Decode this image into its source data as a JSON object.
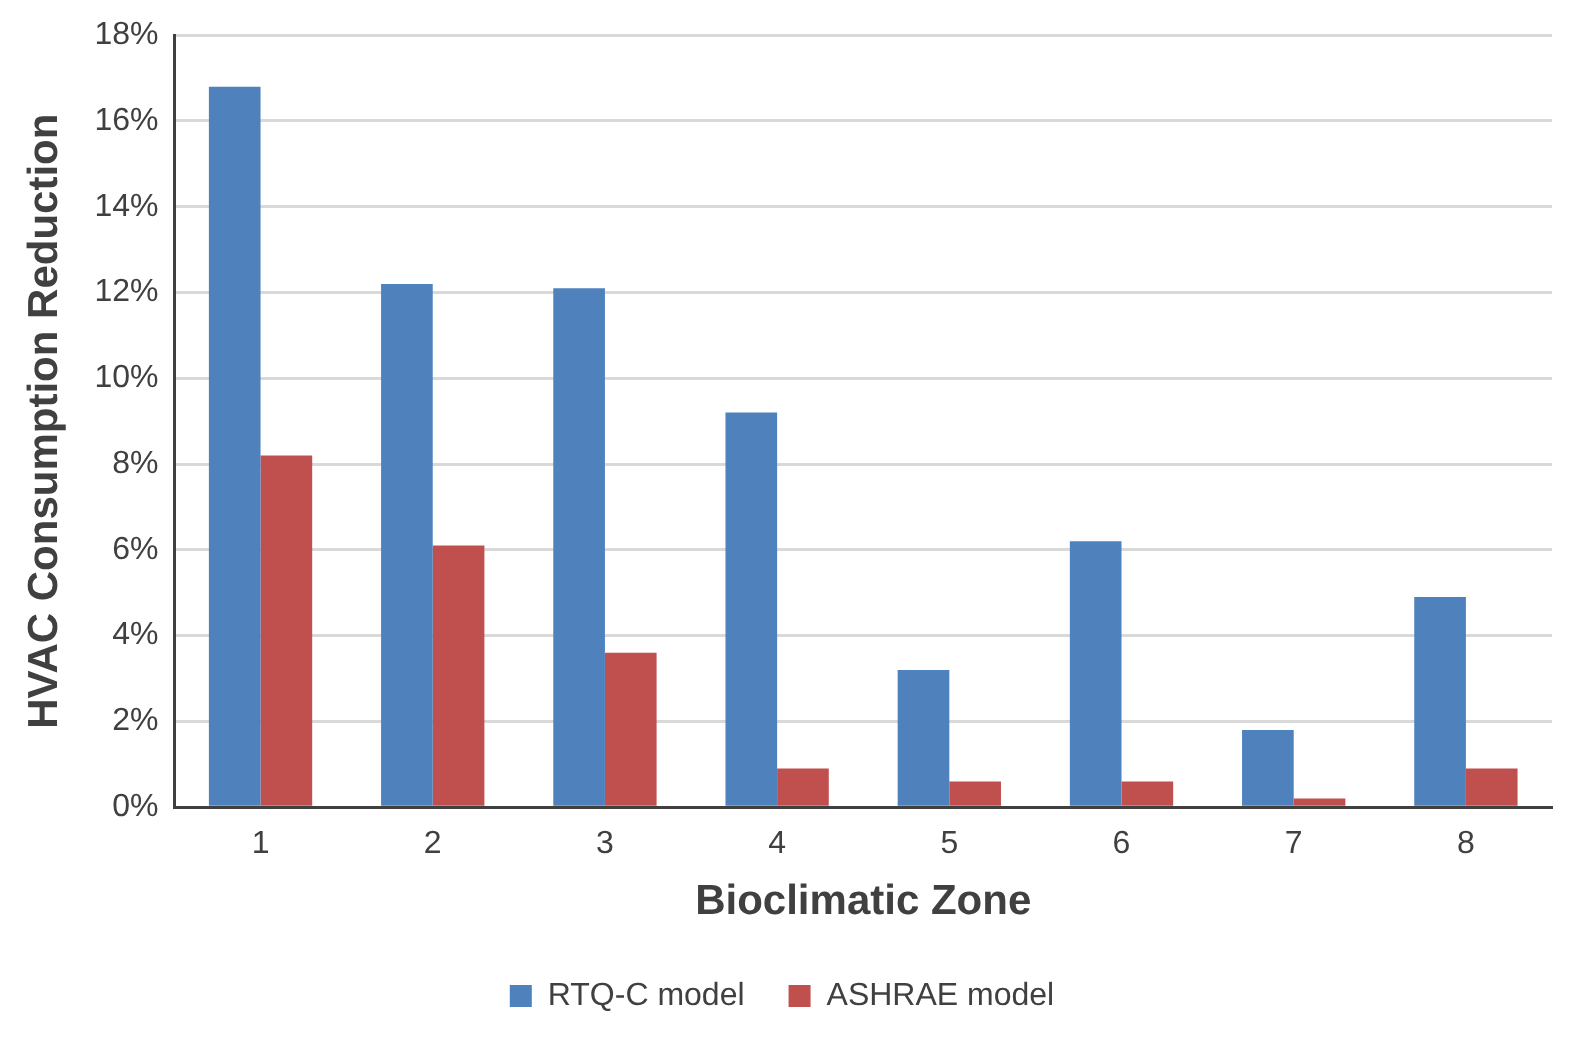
{
  "chart_data": {
    "type": "bar",
    "xlabel": "Bioclimatic Zone",
    "ylabel": "HVAC Consumption Reduction",
    "categories": [
      "1",
      "2",
      "3",
      "4",
      "5",
      "6",
      "7",
      "8"
    ],
    "series": [
      {
        "name": "RTQ-C model",
        "color": "#4f81bd",
        "values": [
          16.8,
          12.2,
          12.1,
          9.2,
          3.2,
          6.2,
          1.8,
          4.9
        ]
      },
      {
        "name": "ASHRAE model",
        "color": "#c0504d",
        "values": [
          8.2,
          6.1,
          3.6,
          0.9,
          0.6,
          0.6,
          0.2,
          0.9
        ]
      }
    ],
    "ylim": [
      0,
      18
    ],
    "yticks": [
      {
        "value": 0,
        "label": "0%"
      },
      {
        "value": 2,
        "label": "2%"
      },
      {
        "value": 4,
        "label": "4%"
      },
      {
        "value": 6,
        "label": "6%"
      },
      {
        "value": 8,
        "label": "8%"
      },
      {
        "value": 10,
        "label": "10%"
      },
      {
        "value": 12,
        "label": "12%"
      },
      {
        "value": 14,
        "label": "14%"
      },
      {
        "value": 16,
        "label": "16%"
      },
      {
        "value": 18,
        "label": "18%"
      }
    ],
    "grid": "y",
    "legend": "bottom"
  }
}
